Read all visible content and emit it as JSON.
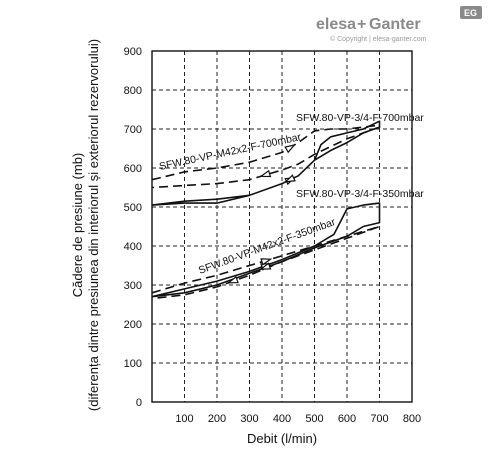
{
  "logo": {
    "brand_left": "elesa",
    "brand_plus": "+",
    "brand_right": "Ganter",
    "badge": "EG",
    "copyright": "© Copyright | elesa-ganter.com"
  },
  "chart_data": {
    "type": "line",
    "xlabel": "Debit (l/min)",
    "ylabel_line1": "Cădere de presiune (mb)",
    "ylabel_line2": "(diferența dintre presiunea din interiorul și exteriorul rezervorului)",
    "xlim": [
      0,
      800
    ],
    "ylim": [
      0,
      900
    ],
    "x_ticks": [
      100,
      200,
      300,
      400,
      500,
      600,
      700,
      800
    ],
    "y_ticks": [
      0,
      100,
      200,
      300,
      400,
      500,
      600,
      700,
      800,
      900
    ],
    "grid": true,
    "series": [
      {
        "name": "SFW.80-VP-3/4-F-700mbar",
        "style": "solid",
        "x": [
          0,
          100,
          200,
          300,
          400,
          450,
          500,
          520,
          550,
          600,
          650,
          700,
          700,
          650,
          600,
          550,
          500,
          450,
          400,
          300,
          200,
          100,
          0
        ],
        "y": [
          505,
          510,
          510,
          530,
          560,
          580,
          620,
          660,
          680,
          690,
          700,
          720,
          705,
          690,
          665,
          645,
          620,
          580,
          560,
          530,
          520,
          515,
          505
        ]
      },
      {
        "name": "SFW.80-VP-M42x2-F-700mbar",
        "style": "dashed",
        "x": [
          0,
          100,
          200,
          300,
          400,
          450,
          500,
          550,
          600,
          650,
          700,
          700,
          600,
          500,
          450,
          400,
          300,
          200,
          100,
          0
        ],
        "y": [
          570,
          590,
          600,
          615,
          640,
          665,
          695,
          700,
          700,
          705,
          710,
          705,
          675,
          635,
          610,
          595,
          570,
          560,
          555,
          550
        ]
      },
      {
        "name": "SFW.80-VP-3/4-F-350mbar",
        "style": "solid",
        "x": [
          0,
          100,
          200,
          300,
          400,
          500,
          560,
          600,
          650,
          700,
          700,
          650,
          600,
          500,
          400,
          300,
          200,
          100,
          0
        ],
        "y": [
          270,
          290,
          310,
          335,
          365,
          400,
          430,
          495,
          505,
          510,
          460,
          450,
          425,
          395,
          360,
          330,
          300,
          280,
          270
        ]
      },
      {
        "name": "SFW.80-VP-M42x2-F-350mbar",
        "style": "dashed",
        "x": [
          0,
          100,
          200,
          300,
          400,
          500,
          600,
          700,
          700,
          600,
          500,
          400,
          300,
          200,
          100,
          0
        ],
        "y": [
          280,
          305,
          325,
          350,
          375,
          400,
          425,
          450,
          450,
          420,
          390,
          360,
          325,
          295,
          275,
          265
        ]
      }
    ],
    "annotations": [
      "SFW.80-VP-3/4-F-700mbar",
      "SFW.80-VP-M42x2-F-700mbar",
      "SFW.80-VP-3/4-F-350mbar",
      "SFW.80-VP-M42x2-F-350mbar"
    ]
  }
}
